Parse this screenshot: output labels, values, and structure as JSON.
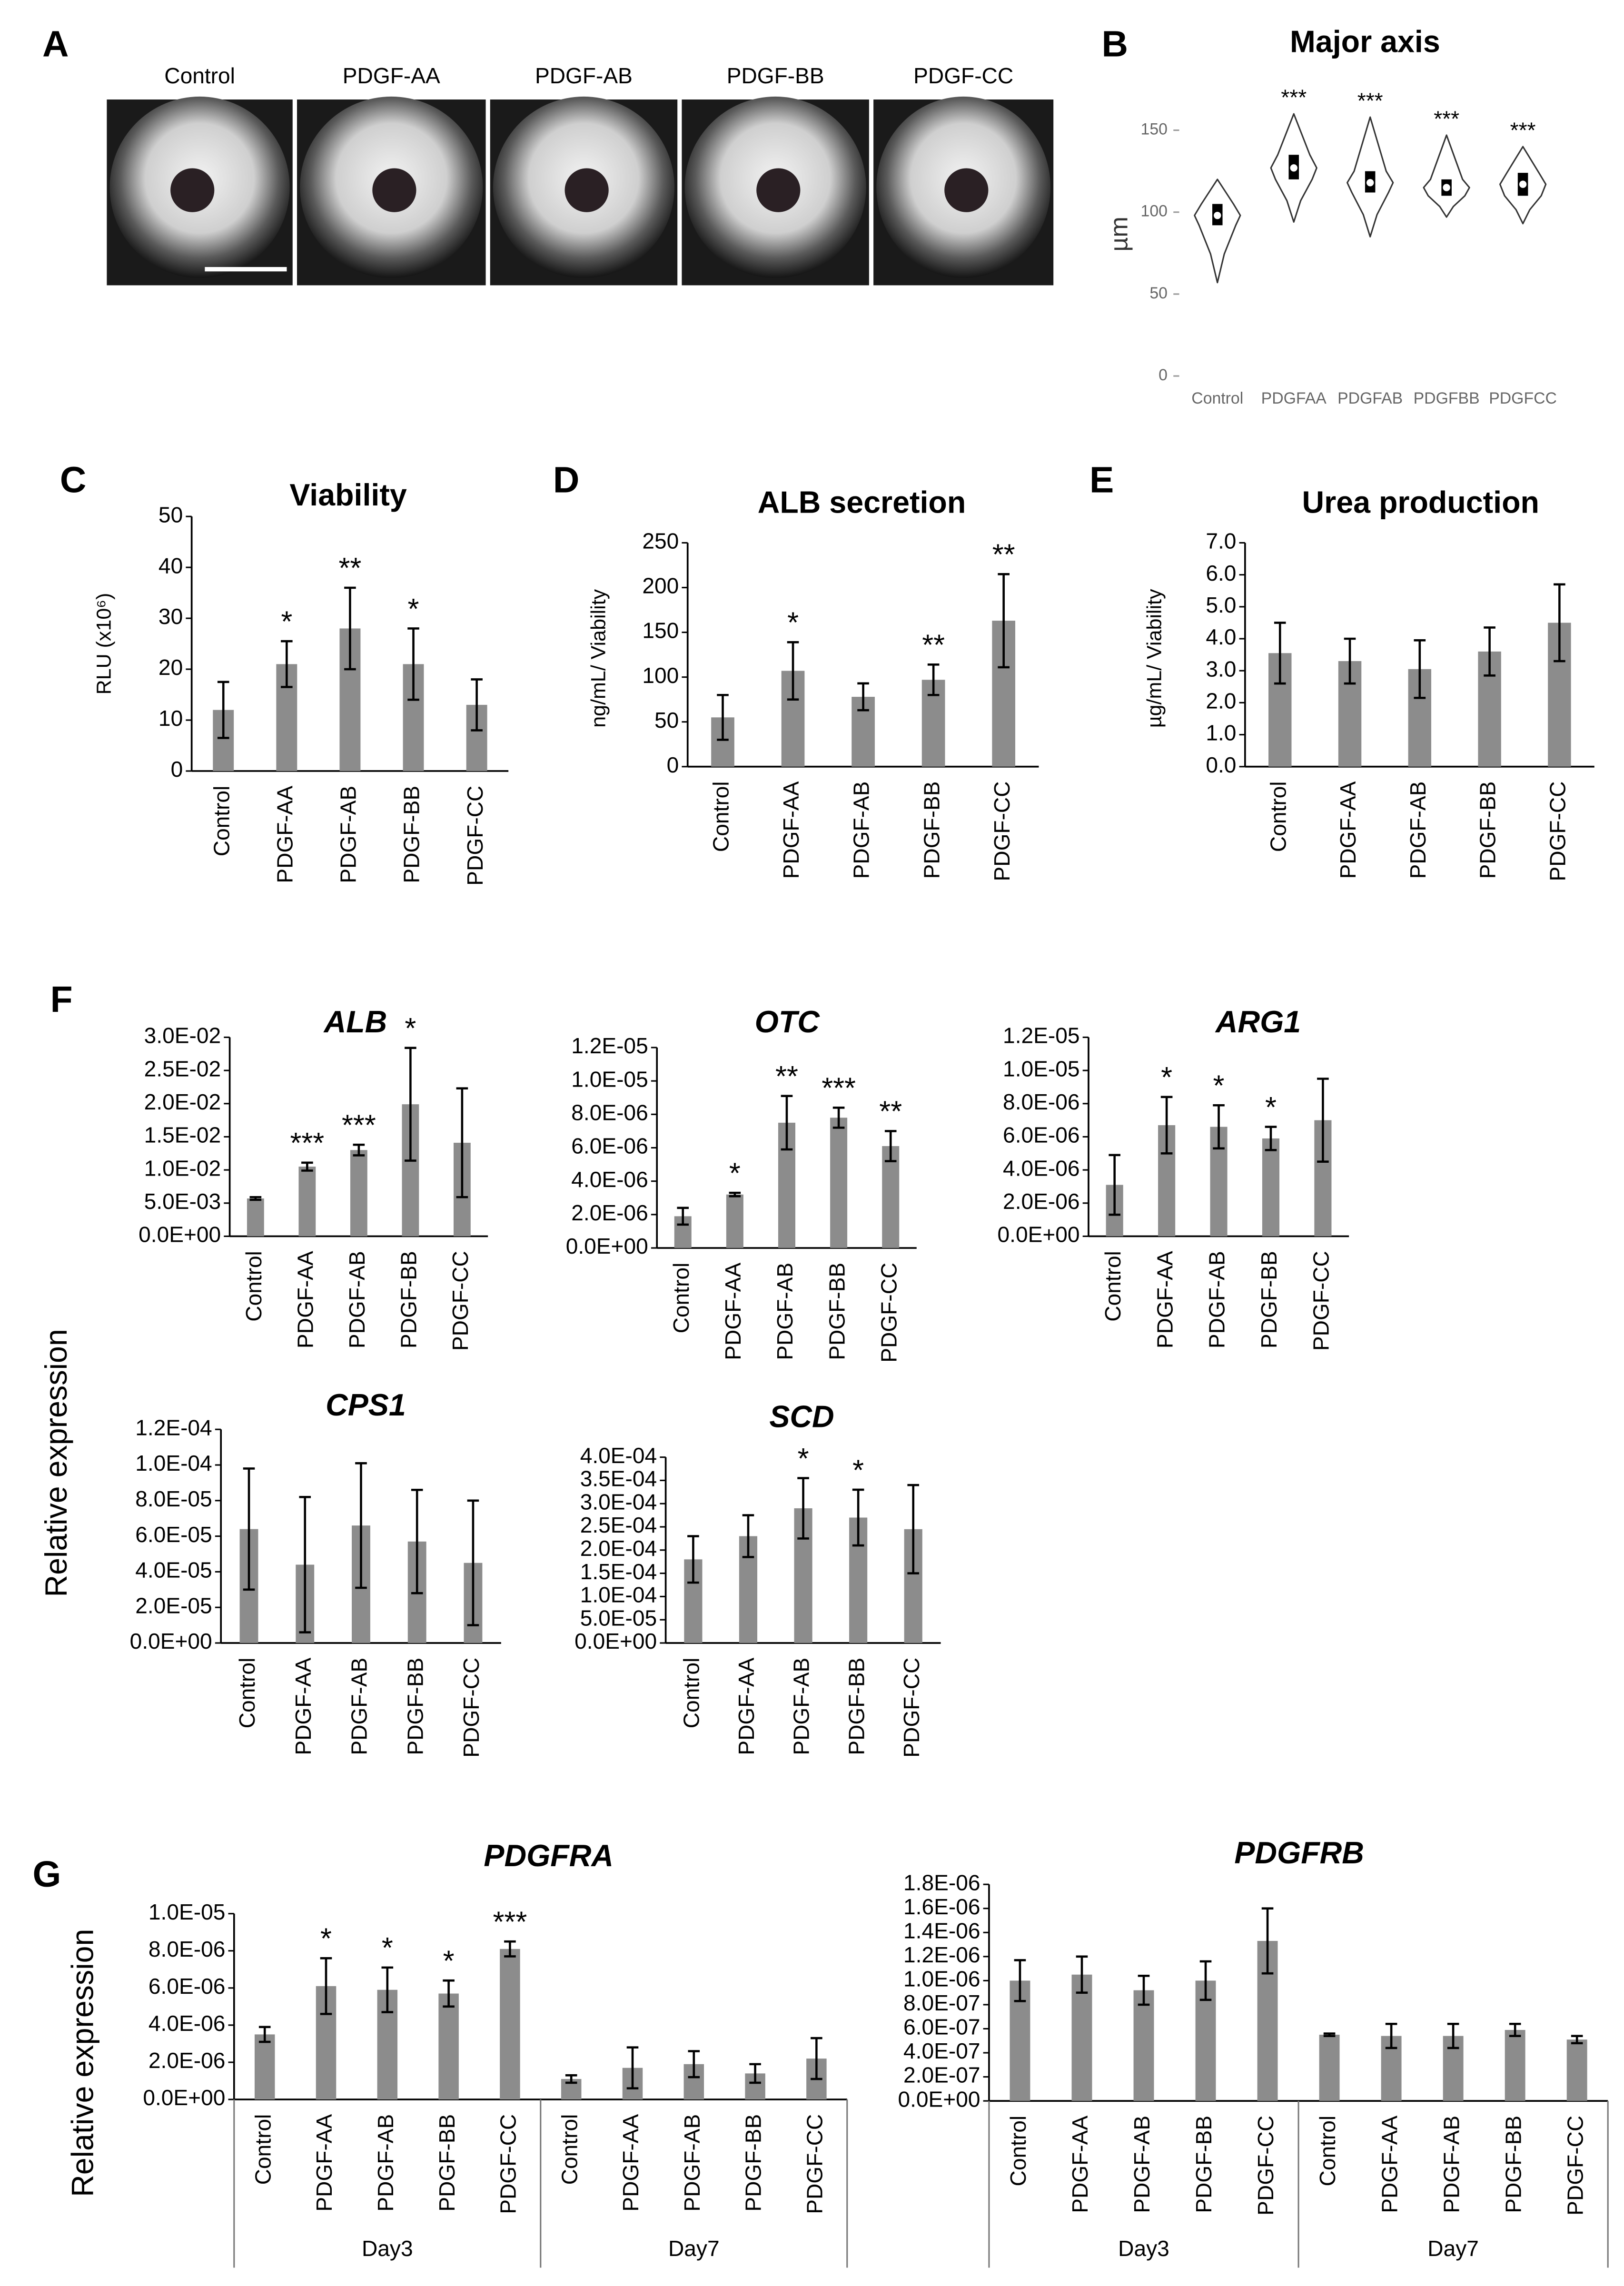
{
  "panel_a": {
    "label": "A",
    "image_titles": [
      "Control",
      "PDGF-AA",
      "PDGF-AB",
      "PDGF-BB",
      "PDGF-CC"
    ]
  },
  "panel_f": {
    "label": "F",
    "ylabel": "Relative expression"
  },
  "chart_data": [
    {
      "type": "violin",
      "label": "B",
      "title": "Major axis",
      "ylabel": "µm",
      "categories": [
        "Control",
        "PDGFAA",
        "PDGFAB",
        "PDGFBB",
        "PDGFCC"
      ],
      "min": [
        57,
        94,
        85,
        97,
        93
      ],
      "q1": [
        92,
        120,
        112,
        110,
        110
      ],
      "median": [
        98,
        127,
        118,
        115,
        117
      ],
      "q3": [
        105,
        135,
        125,
        120,
        124
      ],
      "max": [
        120,
        160,
        158,
        147,
        140
      ],
      "annotations": [
        null,
        "***",
        "***",
        "***",
        "***"
      ],
      "ylim": [
        -5,
        180
      ],
      "yticks": [
        0,
        50,
        100,
        150
      ],
      "color": "#ffffff"
    },
    {
      "type": "bar",
      "label": "C",
      "title": "Viability",
      "ylabel": "RLU (x10⁶)",
      "categories": [
        "Control",
        "PDGF-AA",
        "PDGF-AB",
        "PDGF-BB",
        "PDGF-CC"
      ],
      "values": [
        12,
        21,
        28,
        21,
        13
      ],
      "errors": [
        5.5,
        4.5,
        8,
        7,
        5
      ],
      "annotations": [
        null,
        "*",
        "**",
        "*",
        null
      ],
      "ylim": [
        0,
        50
      ],
      "yticks": [
        0,
        10,
        20,
        30,
        40,
        50
      ],
      "color": "#8c8c8c"
    },
    {
      "type": "bar",
      "label": "D",
      "title": "ALB secretion",
      "ylabel": "ng/mL/ Viability",
      "categories": [
        "Control",
        "PDGF-AA",
        "PDGF-AB",
        "PDGF-BB",
        "PDGF-CC"
      ],
      "values": [
        55,
        107,
        78,
        97,
        163
      ],
      "errors": [
        25,
        32,
        15,
        17,
        52
      ],
      "annotations": [
        null,
        "*",
        null,
        "**",
        "**"
      ],
      "ylim": [
        0,
        250
      ],
      "yticks": [
        0,
        50,
        100,
        150,
        200,
        250
      ],
      "color": "#8c8c8c"
    },
    {
      "type": "bar",
      "label": "E",
      "title": "Urea production",
      "ylabel": "µg/mL/ Viability",
      "categories": [
        "Control",
        "PDGF-AA",
        "PDGF-AB",
        "PDGF-BB",
        "PDGF-CC"
      ],
      "values": [
        3.55,
        3.3,
        3.05,
        3.6,
        4.5
      ],
      "errors": [
        0.95,
        0.7,
        0.9,
        0.75,
        1.2
      ],
      "ylim": [
        0,
        7
      ],
      "yticks": [
        {
          "value": 0,
          "label": "0.0"
        },
        {
          "value": 1,
          "label": "1.0"
        },
        {
          "value": 2,
          "label": "2.0"
        },
        {
          "value": 3,
          "label": "3.0"
        },
        {
          "value": 4,
          "label": "4.0"
        },
        {
          "value": 5,
          "label": "5.0"
        },
        {
          "value": 6,
          "label": "6.0"
        },
        {
          "value": 7,
          "label": "7.0"
        }
      ],
      "color": "#8c8c8c"
    },
    {
      "type": "bar",
      "title": "ALB",
      "categories": [
        "Control",
        "PDGF-AA",
        "PDGF-AB",
        "PDGF-BB",
        "PDGF-CC"
      ],
      "values": [
        0.0057,
        0.0105,
        0.013,
        0.0199,
        0.0141
      ],
      "errors": [
        0.0002,
        0.0006,
        0.0008,
        0.0085,
        0.0082
      ],
      "annotations": [
        null,
        "***",
        "***",
        "*",
        null
      ],
      "ylim": [
        0,
        0.03
      ],
      "yticks": [
        {
          "value": 0,
          "label": "0.0E+00"
        },
        {
          "value": 0.005,
          "label": "5.0E-03"
        },
        {
          "value": 0.01,
          "label": "1.0E-02"
        },
        {
          "value": 0.015,
          "label": "1.5E-02"
        },
        {
          "value": 0.02,
          "label": "2.0E-02"
        },
        {
          "value": 0.025,
          "label": "2.5E-02"
        },
        {
          "value": 0.03,
          "label": "3.0E-02"
        }
      ],
      "color": "#8c8c8c"
    },
    {
      "type": "bar",
      "title": "OTC",
      "categories": [
        "Control",
        "PDGF-AA",
        "PDGF-AB",
        "PDGF-BB",
        "PDGF-CC"
      ],
      "values": [
        1.9e-06,
        3.2e-06,
        7.5e-06,
        7.8e-06,
        6.1e-06
      ],
      "errors": [
        5e-07,
        1e-07,
        1.6e-06,
        6e-07,
        9e-07
      ],
      "annotations": [
        null,
        "*",
        "**",
        "***",
        "**"
      ],
      "ylim": [
        0,
        1.2e-05
      ],
      "yticks": [
        {
          "value": 0,
          "label": "0.0E+00"
        },
        {
          "value": 2e-06,
          "label": "2.0E-06"
        },
        {
          "value": 4e-06,
          "label": "4.0E-06"
        },
        {
          "value": 6e-06,
          "label": "6.0E-06"
        },
        {
          "value": 8e-06,
          "label": "8.0E-06"
        },
        {
          "value": 1e-05,
          "label": "1.0E-05"
        },
        {
          "value": 1.2e-05,
          "label": "1.2E-05"
        }
      ],
      "color": "#8c8c8c"
    },
    {
      "type": "bar",
      "title": "ARG1",
      "categories": [
        "Control",
        "PDGF-AA",
        "PDGF-AB",
        "PDGF-BB",
        "PDGF-CC"
      ],
      "values": [
        3.1e-06,
        6.7e-06,
        6.6e-06,
        5.9e-06,
        7e-06
      ],
      "errors": [
        1.8e-06,
        1.7e-06,
        1.3e-06,
        7e-07,
        2.5e-06
      ],
      "annotations": [
        null,
        "*",
        "*",
        "*",
        null
      ],
      "ylim": [
        0,
        1.2e-05
      ],
      "yticks": [
        {
          "value": 0,
          "label": "0.0E+00"
        },
        {
          "value": 2e-06,
          "label": "2.0E-06"
        },
        {
          "value": 4e-06,
          "label": "4.0E-06"
        },
        {
          "value": 6e-06,
          "label": "6.0E-06"
        },
        {
          "value": 8e-06,
          "label": "8.0E-06"
        },
        {
          "value": 1e-05,
          "label": "1.0E-05"
        },
        {
          "value": 1.2e-05,
          "label": "1.2E-05"
        }
      ],
      "color": "#8c8c8c"
    },
    {
      "type": "bar",
      "title": "CPS1",
      "categories": [
        "Control",
        "PDGF-AA",
        "PDGF-AB",
        "PDGF-BB",
        "PDGF-CC"
      ],
      "values": [
        6.4e-05,
        4.4e-05,
        6.6e-05,
        5.7e-05,
        4.5e-05
      ],
      "errors": [
        3.4e-05,
        3.8e-05,
        3.5e-05,
        2.9e-05,
        3.5e-05
      ],
      "ylim": [
        0,
        0.00012
      ],
      "yticks": [
        {
          "value": 0,
          "label": "0.0E+00"
        },
        {
          "value": 2e-05,
          "label": "2.0E-05"
        },
        {
          "value": 4e-05,
          "label": "4.0E-05"
        },
        {
          "value": 6e-05,
          "label": "6.0E-05"
        },
        {
          "value": 8e-05,
          "label": "8.0E-05"
        },
        {
          "value": 0.0001,
          "label": "1.0E-04"
        },
        {
          "value": 0.00012,
          "label": "1.2E-04"
        }
      ],
      "color": "#8c8c8c"
    },
    {
      "type": "bar",
      "title": "SCD",
      "categories": [
        "Control",
        "PDGF-AA",
        "PDGF-AB",
        "PDGF-BB",
        "PDGF-CC"
      ],
      "values": [
        0.00018,
        0.00023,
        0.00029,
        0.00027,
        0.000245
      ],
      "errors": [
        5e-05,
        4.5e-05,
        6.5e-05,
        6e-05,
        9.5e-05
      ],
      "annotations": [
        null,
        null,
        "*",
        "*",
        null
      ],
      "ylim": [
        0,
        0.0004
      ],
      "yticks": [
        {
          "value": 0,
          "label": "0.0E+00"
        },
        {
          "value": 5e-05,
          "label": "5.0E-05"
        },
        {
          "value": 0.0001,
          "label": "1.0E-04"
        },
        {
          "value": 0.00015,
          "label": "1.5E-04"
        },
        {
          "value": 0.0002,
          "label": "2.0E-04"
        },
        {
          "value": 0.00025,
          "label": "2.5E-04"
        },
        {
          "value": 0.0003,
          "label": "3.0E-04"
        },
        {
          "value": 0.00035,
          "label": "3.5E-04"
        },
        {
          "value": 0.0004,
          "label": "4.0E-04"
        }
      ],
      "color": "#8c8c8c"
    },
    {
      "type": "bar",
      "label": "G",
      "title": "PDGFRA",
      "ylabel": "Relative expression",
      "categories": [
        "Control",
        "PDGF-AA",
        "PDGF-AB",
        "PDGF-BB",
        "PDGF-CC",
        "Control",
        "PDGF-AA",
        "PDGF-AB",
        "PDGF-BB",
        "PDGF-CC"
      ],
      "groups": [
        "Day3",
        "Day7"
      ],
      "values": [
        3.5e-06,
        6.1e-06,
        5.9e-06,
        5.7e-06,
        8.1e-06,
        1.1e-06,
        1.7e-06,
        1.9e-06,
        1.4e-06,
        2.2e-06
      ],
      "errors": [
        4e-07,
        1.5e-06,
        1.2e-06,
        7e-07,
        4e-07,
        2e-07,
        1.1e-06,
        7e-07,
        5e-07,
        1.1e-06
      ],
      "annotations": [
        null,
        "*",
        "*",
        "*",
        "***",
        null,
        null,
        null,
        null,
        null
      ],
      "ylim": [
        0,
        1e-05
      ],
      "yticks": [
        {
          "value": 0,
          "label": "0.0E+00"
        },
        {
          "value": 2e-06,
          "label": "2.0E-06"
        },
        {
          "value": 4e-06,
          "label": "4.0E-06"
        },
        {
          "value": 6e-06,
          "label": "6.0E-06"
        },
        {
          "value": 8e-06,
          "label": "8.0E-06"
        },
        {
          "value": 1e-05,
          "label": "1.0E-05"
        }
      ],
      "color": "#8c8c8c"
    },
    {
      "type": "bar",
      "title": "PDGFRB",
      "categories": [
        "Control",
        "PDGF-AA",
        "PDGF-AB",
        "PDGF-BB",
        "PDGF-CC",
        "Control",
        "PDGF-AA",
        "PDGF-AB",
        "PDGF-BB",
        "PDGF-CC"
      ],
      "groups": [
        "Day3",
        "Day7"
      ],
      "values": [
        1e-06,
        1.05e-06,
        9.2e-07,
        1e-06,
        1.33e-06,
        5.5e-07,
        5.4e-07,
        5.4e-07,
        5.9e-07,
        5.1e-07
      ],
      "errors": [
        1.7e-07,
        1.5e-07,
        1.2e-07,
        1.6e-07,
        2.7e-07,
        1e-08,
        1e-07,
        1e-07,
        5e-08,
        3e-08
      ],
      "ylim": [
        0,
        1.8e-06
      ],
      "yticks": [
        {
          "value": 0,
          "label": "0.0E+00"
        },
        {
          "value": 2e-07,
          "label": "2.0E-07"
        },
        {
          "value": 4e-07,
          "label": "4.0E-07"
        },
        {
          "value": 6e-07,
          "label": "6.0E-07"
        },
        {
          "value": 8e-07,
          "label": "8.0E-07"
        },
        {
          "value": 1e-06,
          "label": "1.0E-06"
        },
        {
          "value": 1.2e-06,
          "label": "1.2E-06"
        },
        {
          "value": 1.4e-06,
          "label": "1.4E-06"
        },
        {
          "value": 1.6e-06,
          "label": "1.6E-06"
        },
        {
          "value": 1.8e-06,
          "label": "1.8E-06"
        }
      ],
      "color": "#8c8c8c"
    }
  ]
}
